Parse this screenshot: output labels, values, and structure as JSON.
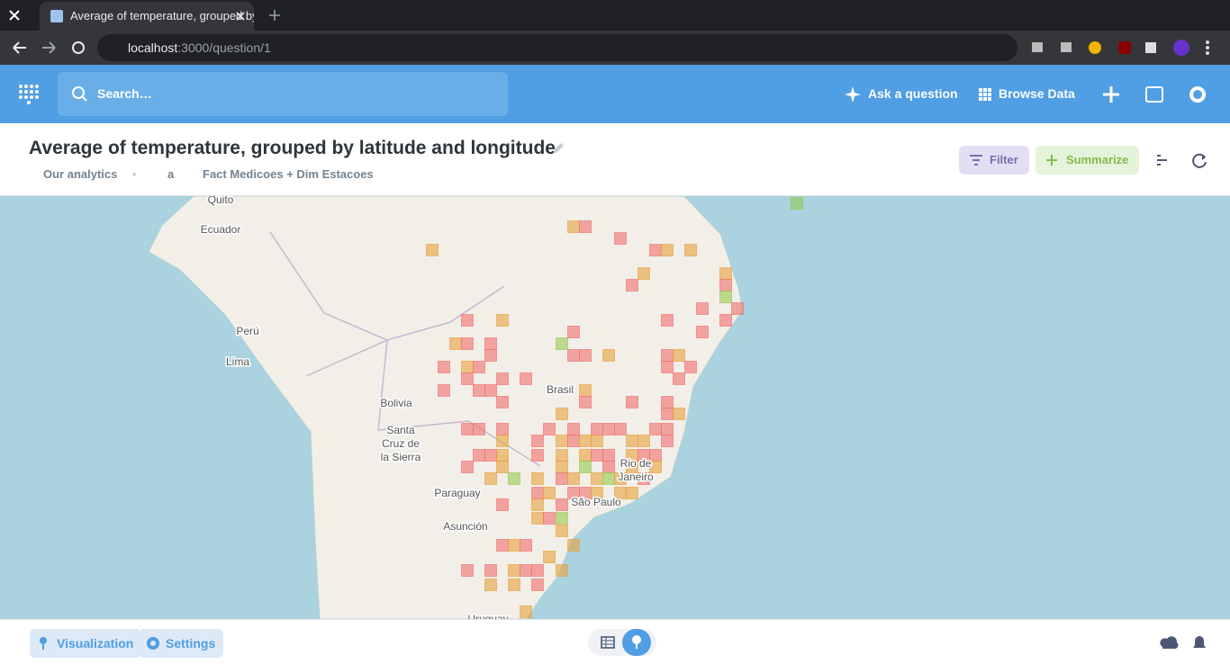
{
  "browser": {
    "tab_title": "Average of temperature, grouped by latitude and longitude",
    "url_host": "localhost",
    "url_path": ":3000/question/1"
  },
  "nav": {
    "search_placeholder": "Search…",
    "ask": "Ask a question",
    "browse": "Browse Data"
  },
  "header": {
    "title": "Average of temperature, grouped by latitude and longitude",
    "breadcrumbs": [
      "Our analytics",
      "a",
      "Fact Medicoes + Dim Estacoes"
    ],
    "filter": "Filter",
    "summarize": "Summarize"
  },
  "map": {
    "labels": [
      "Quito",
      "Ecuador",
      "Perú",
      "Lima",
      "Bolivia",
      "Santa",
      "Cruz de",
      "la Sierra",
      "Brasil",
      "Paraguay",
      "Asunción",
      "Rio de",
      "Janeiro",
      "São Paulo",
      "Uruguay"
    ]
  },
  "footer": {
    "visualization": "Visualization",
    "settings": "Settings"
  }
}
